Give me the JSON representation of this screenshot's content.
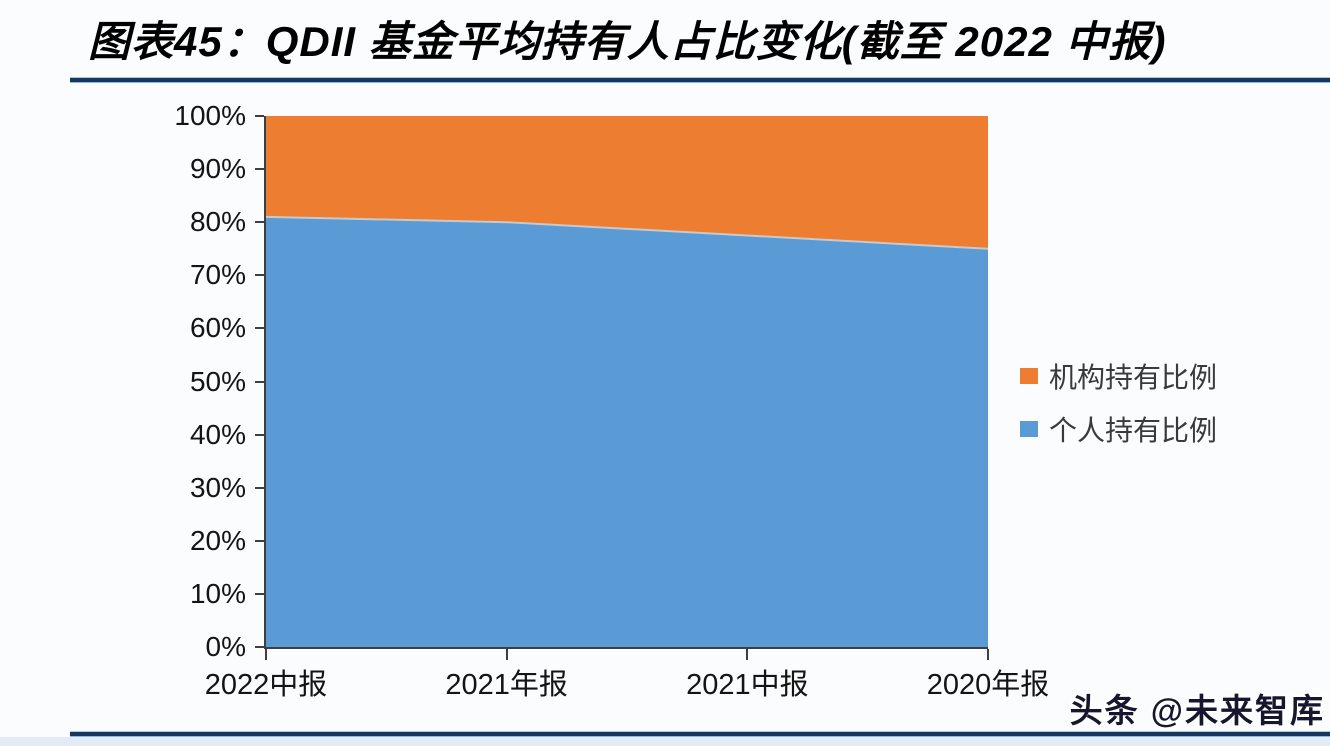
{
  "page": {
    "watermark": "头条 @未来智库",
    "background_color": "#fbfcfd"
  },
  "figure": {
    "title": "图表45：QDII 基金平均持有人占比变化(截至 2022 中报)",
    "rule_color": "#16375f"
  },
  "chart_data": {
    "type": "area",
    "stacked_percent": true,
    "title": "QDII 基金平均持有人占比变化(截至 2022 中报)",
    "categories": [
      "2022中报",
      "2021年报",
      "2021中报",
      "2020年报"
    ],
    "series": [
      {
        "name": "机构持有比例",
        "color": "#ED7D31",
        "values": [
          19,
          20,
          22.5,
          25
        ]
      },
      {
        "name": "个人持有比例",
        "color": "#5B9BD5",
        "values": [
          81,
          80,
          77.5,
          75
        ]
      }
    ],
    "ylim": [
      0,
      100
    ],
    "ytick_step": 10,
    "ytick_labels": [
      "0%",
      "10%",
      "20%",
      "30%",
      "40%",
      "50%",
      "60%",
      "70%",
      "80%",
      "90%",
      "100%"
    ],
    "xlabel": "",
    "ylabel": "",
    "grid": false,
    "legend_position": "right",
    "axis_color": "#3f3f3f",
    "boundary_line_color": "#c9c9c9"
  }
}
